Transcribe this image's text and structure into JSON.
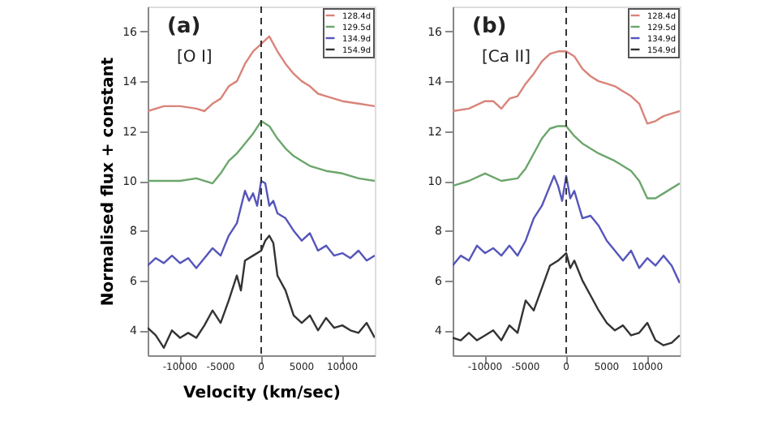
{
  "chart_data": [
    {
      "type": "line",
      "xlabel": "Velocity (km/sec)",
      "ylabel": "Normalised flux + constant",
      "annotations": [
        "(a)",
        "[O I]"
      ],
      "xlim": [
        -14000,
        14000
      ],
      "xticks": [
        -10000,
        -5000,
        0,
        5000,
        10000
      ],
      "ylim": [
        3,
        17
      ],
      "yticks": [
        4,
        6,
        8,
        10,
        12,
        14,
        16
      ],
      "grid": false,
      "legend": "top right",
      "line_style": "solid",
      "ref_lines": [
        {
          "axis": "x",
          "value": 0,
          "label": null,
          "line_style": "dashed",
          "color": "#333333"
        }
      ],
      "series": [
        {
          "name": "128.4d",
          "color": "#d9847a",
          "x": [
            -14000,
            -12000,
            -10000,
            -8000,
            -7000,
            -6000,
            -5000,
            -4000,
            -3000,
            -2000,
            -1000,
            0,
            1000,
            2000,
            3000,
            4000,
            5000,
            6000,
            7000,
            8000,
            9000,
            10000,
            12000,
            14000
          ],
          "values": [
            12.8,
            13.0,
            13.0,
            12.9,
            12.8,
            13.1,
            13.3,
            13.8,
            14.0,
            14.7,
            15.2,
            15.5,
            15.8,
            15.2,
            14.7,
            14.3,
            14.0,
            13.8,
            13.5,
            13.4,
            13.3,
            13.2,
            13.1,
            13.0
          ]
        },
        {
          "name": "129.5d",
          "color": "#6ca66c",
          "x": [
            -14000,
            -10000,
            -8000,
            -6000,
            -5000,
            -4000,
            -3000,
            -2000,
            -1000,
            0,
            1000,
            2000,
            3000,
            4000,
            5000,
            6000,
            8000,
            10000,
            12000,
            14000
          ],
          "values": [
            10.0,
            10.0,
            10.1,
            9.9,
            10.3,
            10.8,
            11.1,
            11.5,
            11.9,
            12.4,
            12.2,
            11.7,
            11.3,
            11.0,
            10.8,
            10.6,
            10.4,
            10.3,
            10.1,
            10.0
          ]
        },
        {
          "name": "134.9d",
          "color": "#5555bb",
          "x": [
            -14000,
            -13000,
            -12000,
            -11000,
            -10000,
            -9000,
            -8000,
            -7000,
            -6000,
            -5000,
            -4000,
            -3000,
            -2000,
            -1500,
            -1000,
            -500,
            0,
            500,
            1000,
            1500,
            2000,
            3000,
            4000,
            5000,
            6000,
            7000,
            8000,
            9000,
            10000,
            11000,
            12000,
            13000,
            14000
          ],
          "values": [
            6.6,
            6.9,
            6.7,
            7.0,
            6.7,
            6.9,
            6.5,
            6.9,
            7.3,
            7.0,
            7.8,
            8.3,
            9.6,
            9.2,
            9.5,
            9.0,
            10.0,
            9.9,
            9.0,
            9.2,
            8.7,
            8.5,
            8.0,
            7.6,
            7.9,
            7.2,
            7.4,
            7.0,
            7.1,
            6.9,
            7.2,
            6.8,
            7.0
          ]
        },
        {
          "name": "154.9d",
          "color": "#333333",
          "x": [
            -14000,
            -13000,
            -12000,
            -11000,
            -10000,
            -9000,
            -8000,
            -7000,
            -6000,
            -5000,
            -4000,
            -3000,
            -2500,
            -2000,
            -1000,
            0,
            500,
            1000,
            1500,
            2000,
            3000,
            4000,
            5000,
            6000,
            7000,
            8000,
            9000,
            10000,
            11000,
            12000,
            13000,
            14000
          ],
          "values": [
            4.1,
            3.8,
            3.3,
            4.0,
            3.7,
            3.9,
            3.7,
            4.2,
            4.8,
            4.3,
            5.2,
            6.2,
            5.6,
            6.8,
            7.0,
            7.2,
            7.6,
            7.8,
            7.5,
            6.2,
            5.6,
            4.6,
            4.3,
            4.6,
            4.0,
            4.5,
            4.1,
            4.2,
            4.0,
            3.9,
            4.3,
            3.7
          ]
        }
      ]
    },
    {
      "type": "line",
      "annotations": [
        "(b)",
        "[Ca II]"
      ],
      "xlim": [
        -14000,
        14000
      ],
      "xticks": [
        -10000,
        -5000,
        0,
        5000,
        10000
      ],
      "ylim": [
        3,
        17
      ],
      "yticks": [
        4,
        6,
        8,
        10,
        12,
        14,
        16
      ],
      "grid": false,
      "legend": "top right",
      "line_style": "solid",
      "ref_lines": [
        {
          "axis": "x",
          "value": 0,
          "label": null,
          "line_style": "dashed",
          "color": "#333333"
        }
      ],
      "series": [
        {
          "name": "128.4d",
          "color": "#d9847a",
          "x": [
            -14000,
            -12000,
            -10000,
            -9000,
            -8000,
            -7000,
            -6000,
            -5000,
            -4000,
            -3000,
            -2000,
            -1000,
            0,
            1000,
            2000,
            3000,
            4000,
            5000,
            6000,
            7000,
            8000,
            9000,
            10000,
            11000,
            12000,
            14000
          ],
          "values": [
            12.8,
            12.9,
            13.2,
            13.2,
            12.9,
            13.3,
            13.4,
            13.9,
            14.3,
            14.8,
            15.1,
            15.2,
            15.2,
            15.0,
            14.5,
            14.2,
            14.0,
            13.9,
            13.8,
            13.6,
            13.4,
            13.1,
            12.3,
            12.4,
            12.6,
            12.8
          ]
        },
        {
          "name": "129.5d",
          "color": "#6ca66c",
          "x": [
            -14000,
            -12000,
            -10000,
            -8000,
            -6000,
            -5000,
            -4000,
            -3000,
            -2000,
            -1000,
            0,
            1000,
            2000,
            4000,
            6000,
            8000,
            9000,
            10000,
            11000,
            12000,
            14000
          ],
          "values": [
            9.8,
            10.0,
            10.3,
            10.0,
            10.1,
            10.5,
            11.1,
            11.7,
            12.1,
            12.2,
            12.2,
            11.8,
            11.5,
            11.1,
            10.8,
            10.4,
            10.0,
            9.3,
            9.3,
            9.5,
            9.9
          ]
        },
        {
          "name": "134.9d",
          "color": "#5555bb",
          "x": [
            -14000,
            -13000,
            -12000,
            -11000,
            -10000,
            -9000,
            -8000,
            -7000,
            -6000,
            -5000,
            -4000,
            -3000,
            -2000,
            -1500,
            -1000,
            -500,
            0,
            500,
            1000,
            2000,
            3000,
            4000,
            5000,
            6000,
            7000,
            8000,
            9000,
            10000,
            11000,
            12000,
            13000,
            14000
          ],
          "values": [
            6.6,
            7.0,
            6.8,
            7.4,
            7.1,
            7.3,
            7.0,
            7.4,
            7.0,
            7.6,
            8.5,
            9.0,
            9.8,
            10.2,
            9.8,
            9.2,
            10.2,
            9.3,
            9.6,
            8.5,
            8.6,
            8.2,
            7.6,
            7.2,
            6.8,
            7.2,
            6.5,
            6.9,
            6.6,
            7.0,
            6.6,
            5.9
          ]
        },
        {
          "name": "154.9d",
          "color": "#333333",
          "x": [
            -14000,
            -13000,
            -12000,
            -11000,
            -10000,
            -9000,
            -8000,
            -7000,
            -6000,
            -5000,
            -4000,
            -3000,
            -2000,
            -1000,
            0,
            500,
            1000,
            2000,
            3000,
            4000,
            5000,
            6000,
            7000,
            8000,
            9000,
            10000,
            11000,
            12000,
            13000,
            14000
          ],
          "values": [
            3.7,
            3.6,
            3.9,
            3.6,
            3.8,
            4.0,
            3.6,
            4.2,
            3.9,
            5.2,
            4.8,
            5.7,
            6.6,
            6.8,
            7.1,
            6.5,
            6.8,
            6.0,
            5.4,
            4.8,
            4.3,
            4.0,
            4.2,
            3.8,
            3.9,
            4.3,
            3.6,
            3.4,
            3.5,
            3.8
          ]
        }
      ]
    }
  ]
}
